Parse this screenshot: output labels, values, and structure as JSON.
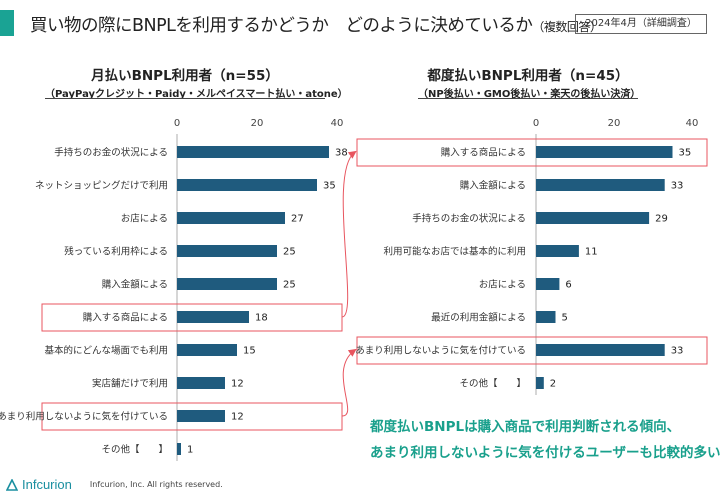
{
  "title": "買い物の際にBNPLを利用するかどうか　どのように決めているか",
  "title_suffix": "（複数回答）",
  "date_badge": "2024年4月（詳細調査）",
  "chart_data": [
    {
      "type": "bar",
      "orientation": "horizontal",
      "title": "月払いBNPL利用者（n=55）",
      "subtitle": "（PayPayクレジット・Paidy・メルペイスマート払い・atone）",
      "xlim": [
        0,
        40
      ],
      "ticks": [
        0,
        20,
        40
      ],
      "categories": [
        "手持ちのお金の状況による",
        "ネットショッピングだけで利用",
        "お店による",
        "残っている利用枠による",
        "購入金額による",
        "購入する商品による",
        "基本的にどんな場面でも利用",
        "実店舗だけで利用",
        "あまり利用しないように気を付けている",
        "その他【　　】"
      ],
      "values": [
        38,
        35,
        27,
        25,
        25,
        18,
        15,
        12,
        12,
        1
      ],
      "highlighted": [
        "購入する商品による",
        "あまり利用しないように気を付けている"
      ],
      "bar_color": "#1f5b7e"
    },
    {
      "type": "bar",
      "orientation": "horizontal",
      "title": "都度払いBNPL利用者（n=45）",
      "subtitle": "（NP後払い・GMO後払い・楽天の後払い決済）",
      "xlim": [
        0,
        40
      ],
      "ticks": [
        0,
        20,
        40
      ],
      "categories": [
        "購入する商品による",
        "購入金額による",
        "手持ちのお金の状況による",
        "利用可能なお店では基本的に利用",
        "お店による",
        "最近の利用金額による",
        "あまり利用しないように気を付けている",
        "その他【　　】"
      ],
      "values": [
        35,
        33,
        29,
        11,
        6,
        5,
        33,
        2
      ],
      "highlighted": [
        "購入する商品による",
        "あまり利用しないように気を付けている"
      ],
      "bar_color": "#1f5b7e"
    }
  ],
  "conclusion": [
    "都度払いBNPLは購入商品で利用判断される傾向、",
    "あまり利用しないように気を付けるユーザーも比較的多い"
  ],
  "footer": {
    "logo": "Infcurion",
    "copyright": "Infcurion, Inc.  All rights reserved."
  },
  "colors": {
    "accent": "#1aa394",
    "bar": "#1f5b7e",
    "highlight": "#e8555f",
    "conclusion": "#19a08c"
  }
}
